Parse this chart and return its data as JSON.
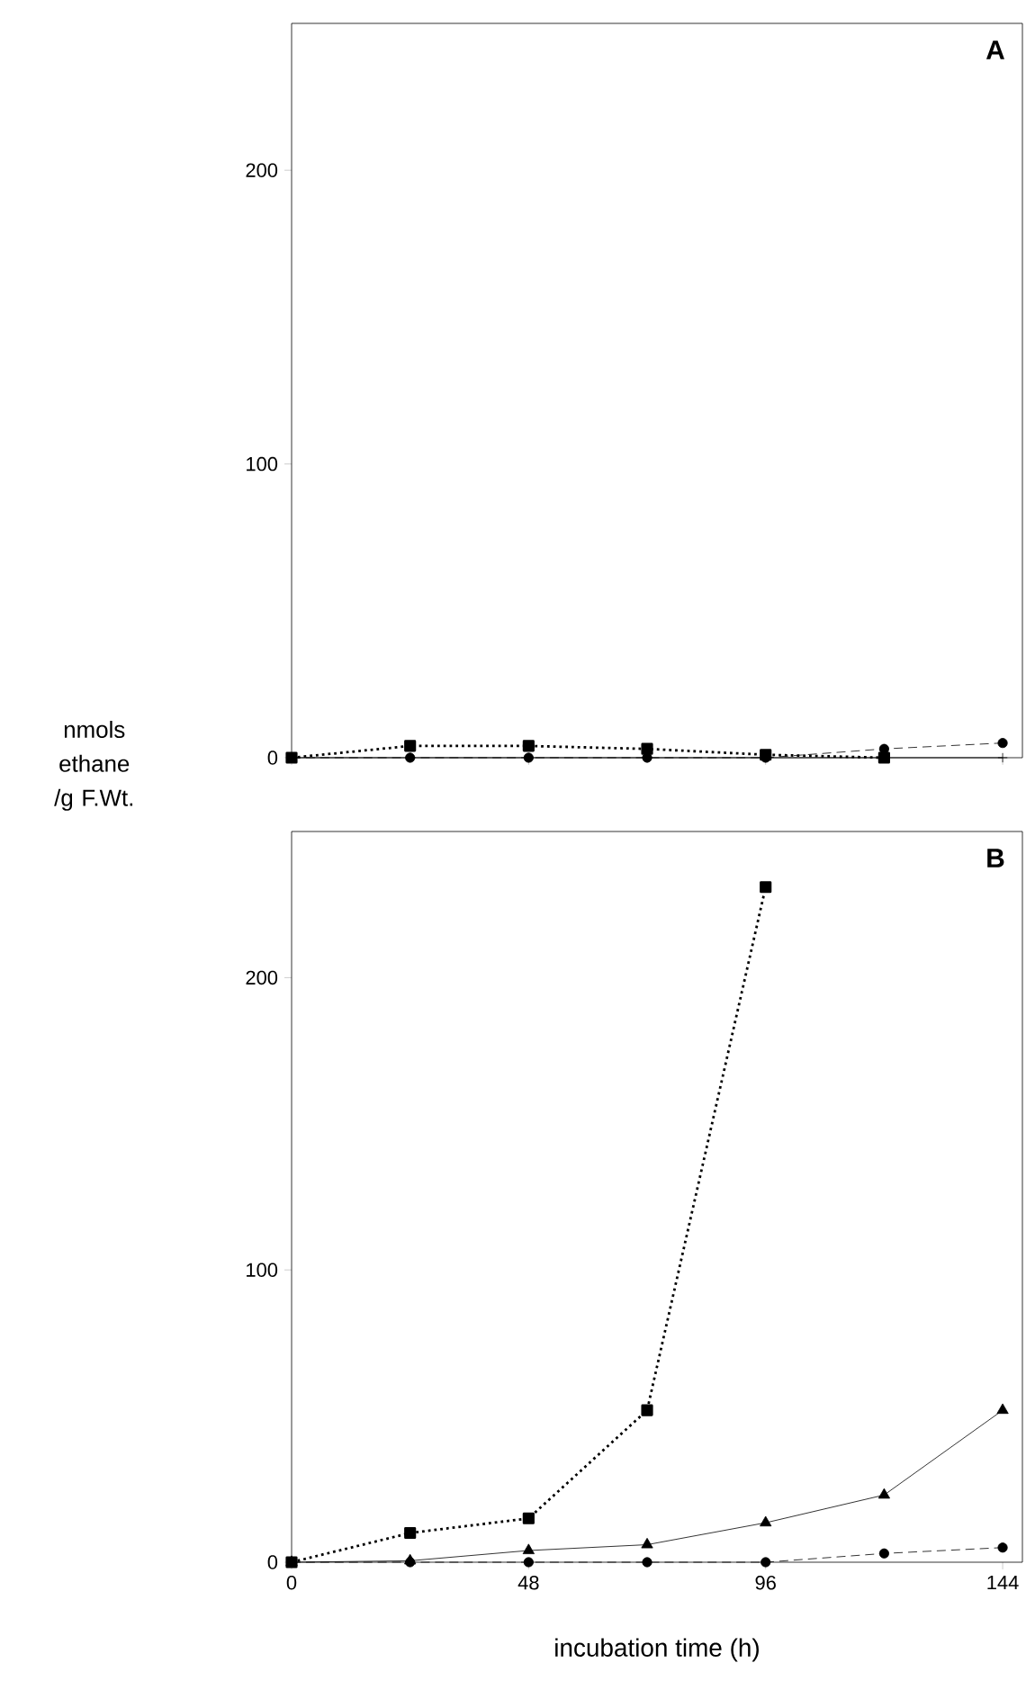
{
  "chart_data": [
    {
      "type": "line",
      "xlim": [
        0,
        148
      ],
      "ylim": [
        0,
        250
      ],
      "xticks": [
        0,
        48,
        96,
        144
      ],
      "yticks": [
        0,
        100,
        200
      ],
      "tick_labels": "y",
      "annotations": [
        "A"
      ],
      "series": [
        {
          "x": [
            0,
            24,
            48,
            72,
            96,
            120
          ],
          "values": [
            0,
            4,
            4,
            3,
            1,
            0
          ],
          "color": "#000000",
          "marker": "square",
          "line_style": "dotted"
        },
        {
          "x": [
            0,
            24,
            48,
            72,
            96,
            120,
            144
          ],
          "values": [
            0,
            0,
            0,
            0,
            0,
            0,
            0
          ],
          "color": "#000000",
          "marker": "cross",
          "line_style": "solid"
        },
        {
          "x": [
            0,
            24,
            48,
            72,
            96,
            120,
            144
          ],
          "values": [
            0,
            0,
            0,
            0,
            0,
            3,
            5
          ],
          "color": "#000000",
          "marker": "circle",
          "line_style": "dashed"
        }
      ]
    },
    {
      "type": "line",
      "xlim": [
        0,
        148
      ],
      "ylim": [
        0,
        250
      ],
      "xticks": [
        0,
        48,
        96,
        144
      ],
      "yticks": [
        0,
        100,
        200
      ],
      "xlabel": "incubation time (h)",
      "ylabel": "nmols ethane /g F.Wt.",
      "annotations": [
        "B"
      ],
      "series": [
        {
          "x": [
            0,
            24,
            48,
            72,
            96
          ],
          "values": [
            0,
            10,
            15,
            52,
            231
          ],
          "color": "#000000",
          "marker": "square",
          "line_style": "dotted"
        },
        {
          "x": [
            0,
            24,
            48,
            72,
            96,
            120,
            144
          ],
          "values": [
            0,
            0.5,
            4,
            6,
            13.5,
            23,
            52
          ],
          "color": "#000000",
          "marker": "triangle",
          "line_style": "solid"
        },
        {
          "x": [
            0,
            24,
            48,
            72,
            96,
            120,
            144
          ],
          "values": [
            0,
            0,
            0,
            0,
            0,
            3,
            5
          ],
          "color": "#000000",
          "marker": "circle",
          "line_style": "dashed"
        }
      ]
    }
  ]
}
